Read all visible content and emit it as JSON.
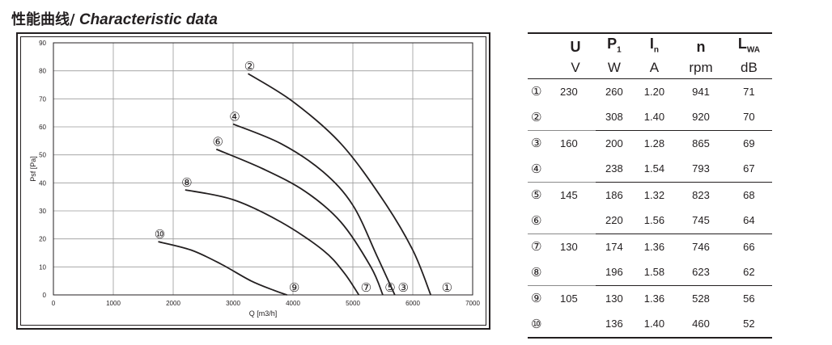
{
  "title": {
    "zh": "性能曲线/",
    "en": " Characteristic data"
  },
  "chart_data": {
    "type": "line",
    "xlabel": "Q [m3/h]",
    "ylabel": "Psf [Pa]",
    "xlim": [
      0,
      7000
    ],
    "ylim": [
      0,
      90
    ],
    "xticks": [
      "0",
      "1000",
      "2000",
      "3000",
      "4000",
      "5000",
      "6000",
      "7000"
    ],
    "yticks": [
      "0",
      "10",
      "20",
      "30",
      "40",
      "50",
      "60",
      "70",
      "80",
      "90"
    ],
    "grid": true,
    "line_color": "#231f20",
    "series": [
      {
        "name": "②",
        "label_at": "start",
        "points": [
          [
            3250,
            79
          ],
          [
            4000,
            69
          ],
          [
            4800,
            54
          ],
          [
            5500,
            34
          ],
          [
            6000,
            16
          ],
          [
            6300,
            0
          ]
        ]
      },
      {
        "name": "④",
        "label_at": "start",
        "points": [
          [
            3000,
            61
          ],
          [
            3800,
            54
          ],
          [
            4500,
            44
          ],
          [
            5000,
            32
          ],
          [
            5400,
            14
          ],
          [
            5700,
            0
          ]
        ]
      },
      {
        "name": "⑥",
        "label_at": "start",
        "points": [
          [
            2720,
            52
          ],
          [
            3500,
            45
          ],
          [
            4200,
            37
          ],
          [
            4800,
            26
          ],
          [
            5300,
            10
          ],
          [
            5500,
            0
          ]
        ]
      },
      {
        "name": "⑧",
        "label_at": "start",
        "points": [
          [
            2200,
            37.5
          ],
          [
            3000,
            34
          ],
          [
            3800,
            26
          ],
          [
            4500,
            16
          ],
          [
            4850,
            8
          ],
          [
            5100,
            0
          ]
        ]
      },
      {
        "name": "⑩",
        "label_at": "start",
        "points": [
          [
            1750,
            19
          ],
          [
            2300,
            16
          ],
          [
            2800,
            11
          ],
          [
            3300,
            5
          ],
          [
            3700,
            1.5
          ],
          [
            3900,
            0
          ]
        ]
      }
    ],
    "end_labels": [
      {
        "text": "⑨",
        "x": 3900
      },
      {
        "text": "⑦",
        "x": 5100
      },
      {
        "text": "⑤",
        "x": 5500
      },
      {
        "text": "③",
        "x": 5720
      },
      {
        "text": "①",
        "x": 6450
      }
    ]
  },
  "table": {
    "headers": [
      {
        "main": "U",
        "sub": ""
      },
      {
        "main": "P",
        "sub": "1"
      },
      {
        "main": "I",
        "sub": "n"
      },
      {
        "main": "n",
        "sub": ""
      },
      {
        "main": "L",
        "sub": "WA"
      }
    ],
    "units": [
      "V",
      "W",
      "A",
      "rpm",
      "dB"
    ],
    "rows": [
      {
        "no": "①",
        "U": "230",
        "P": "260",
        "I": "1.20",
        "n": "941",
        "L": "71"
      },
      {
        "no": "②",
        "U": "",
        "P": "308",
        "I": "1.40",
        "n": "920",
        "L": "70"
      },
      {
        "no": "③",
        "U": "160",
        "P": "200",
        "I": "1.28",
        "n": "865",
        "L": "69"
      },
      {
        "no": "④",
        "U": "",
        "P": "238",
        "I": "1.54",
        "n": "793",
        "L": "67"
      },
      {
        "no": "⑤",
        "U": "145",
        "P": "186",
        "I": "1.32",
        "n": "823",
        "L": "68"
      },
      {
        "no": "⑥",
        "U": "",
        "P": "220",
        "I": "1.56",
        "n": "745",
        "L": "64"
      },
      {
        "no": "⑦",
        "U": "130",
        "P": "174",
        "I": "1.36",
        "n": "746",
        "L": "66"
      },
      {
        "no": "⑧",
        "U": "",
        "P": "196",
        "I": "1.58",
        "n": "623",
        "L": "62"
      },
      {
        "no": "⑨",
        "U": "105",
        "P": "130",
        "I": "1.36",
        "n": "528",
        "L": "56"
      },
      {
        "no": "⑩",
        "U": "",
        "P": "136",
        "I": "1.40",
        "n": "460",
        "L": "52"
      }
    ]
  }
}
